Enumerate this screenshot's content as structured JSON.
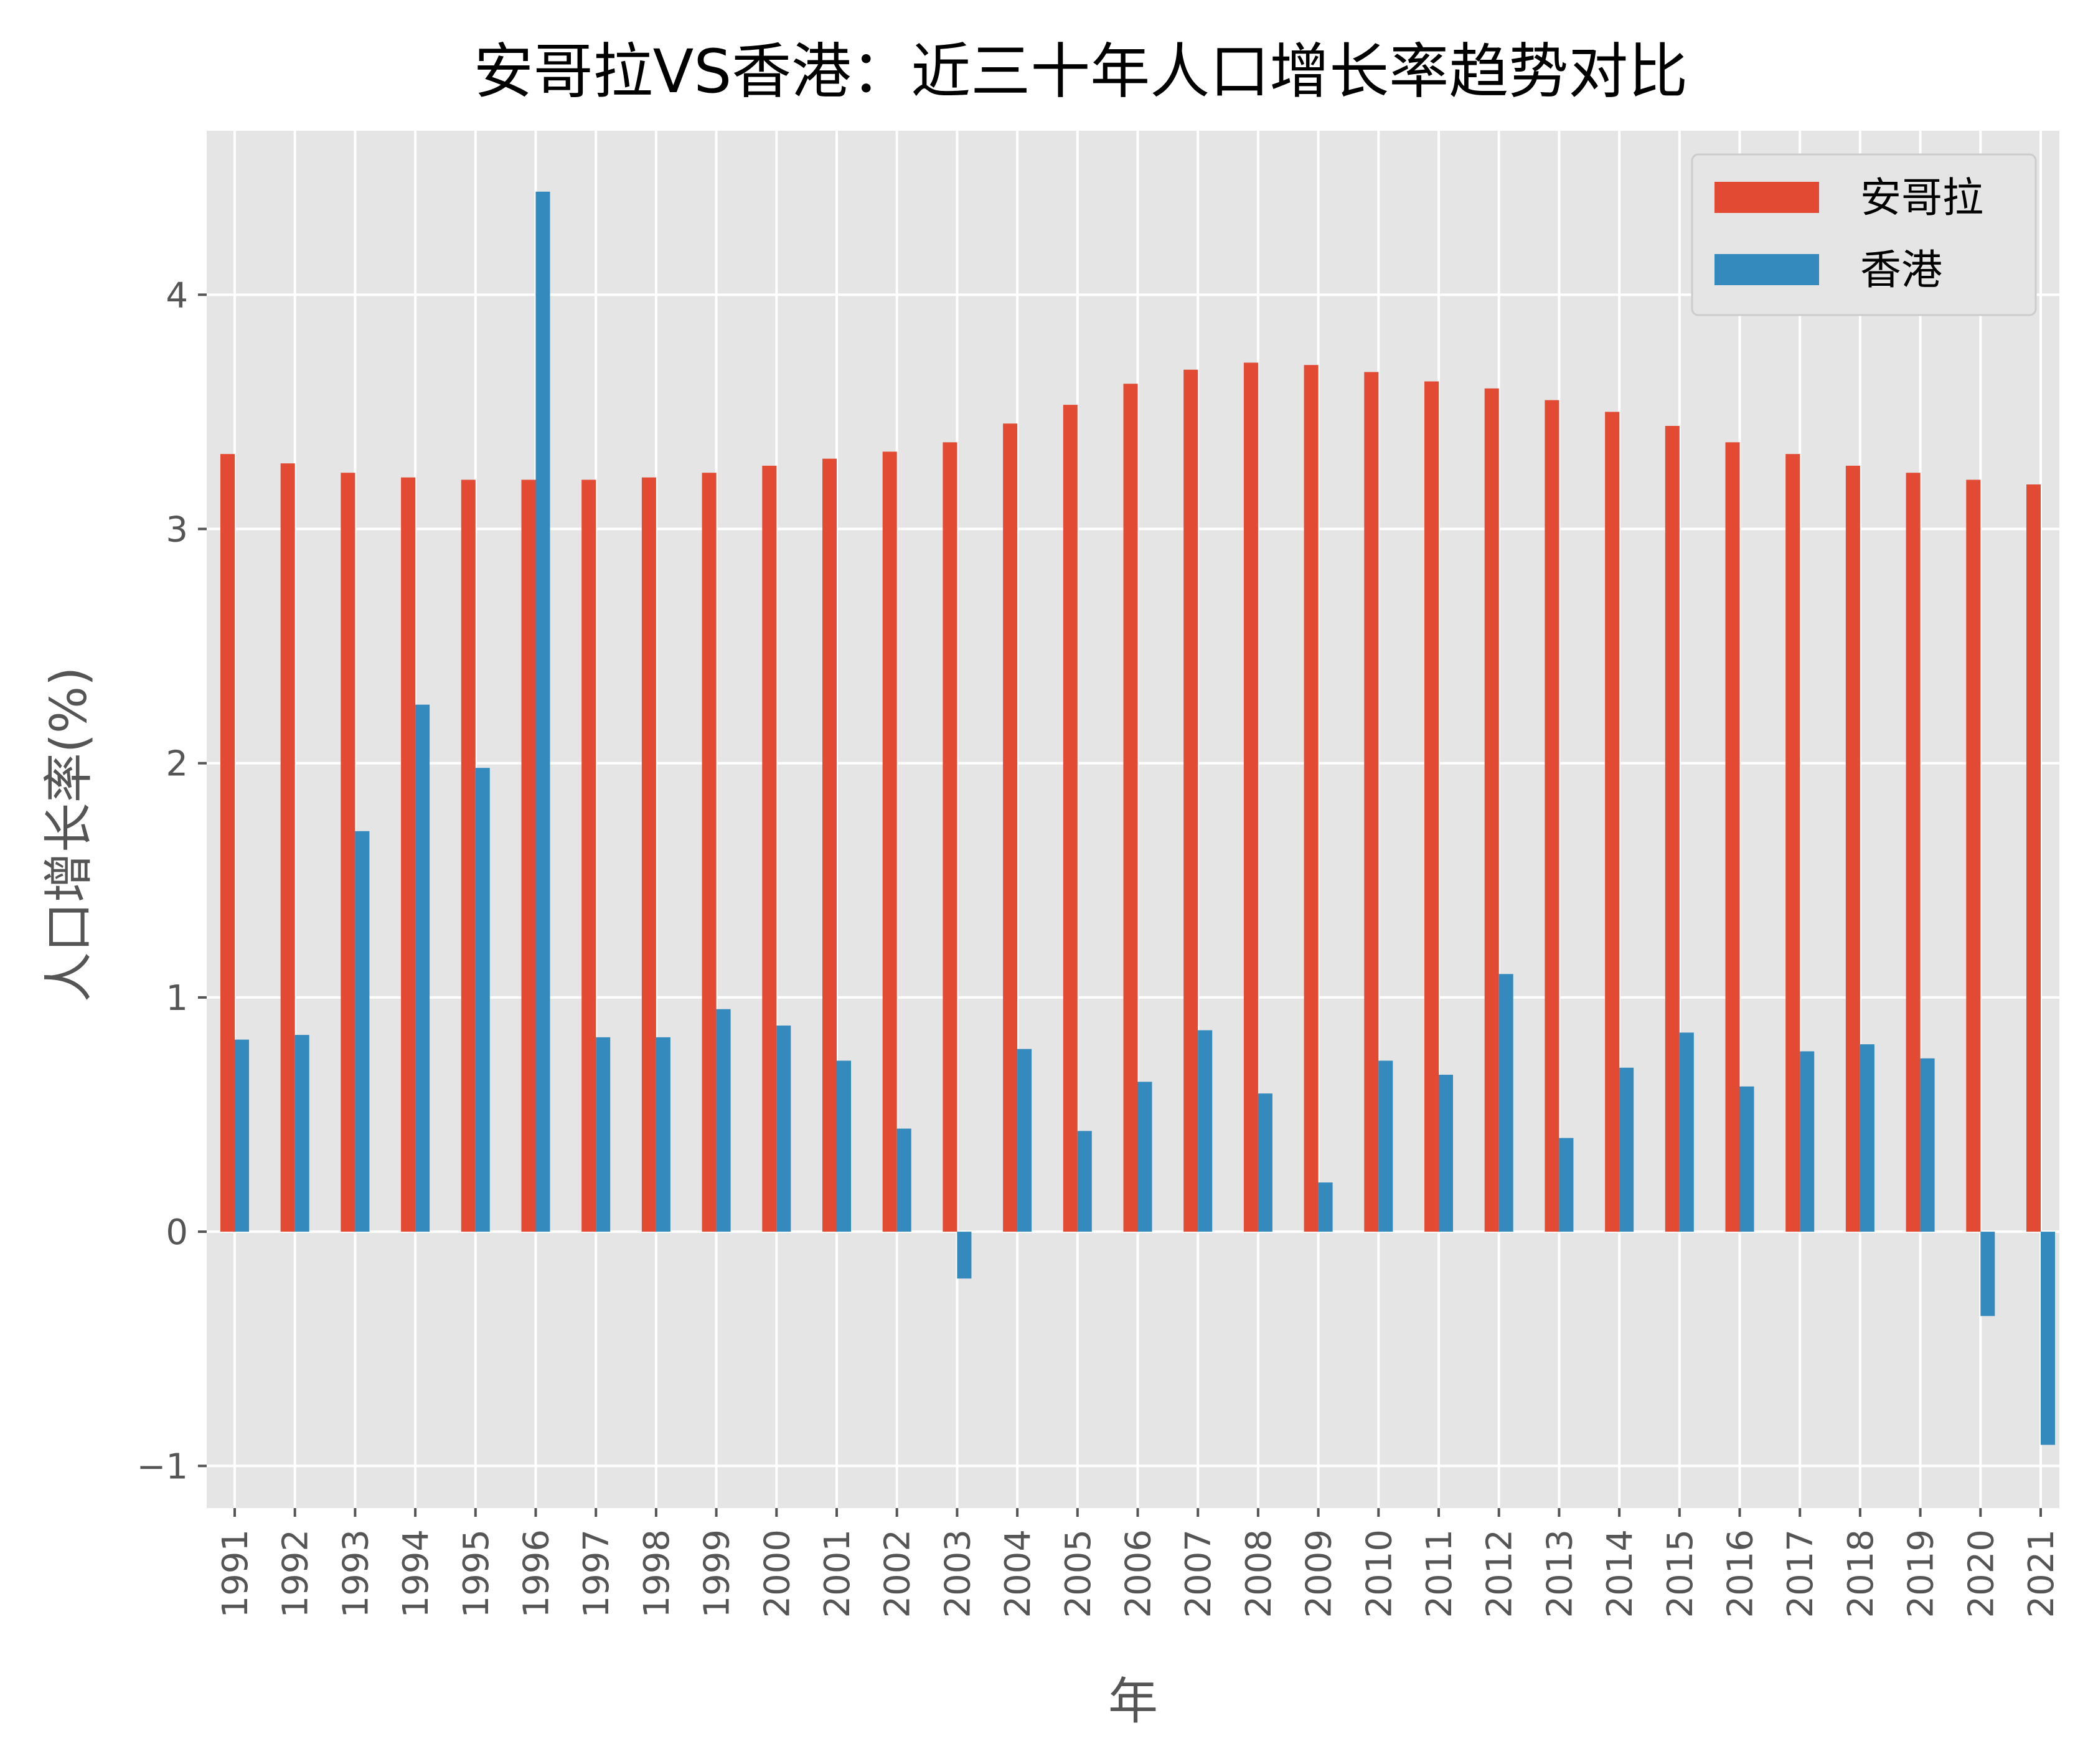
{
  "chart_data": {
    "type": "bar",
    "title": "安哥拉VS香港：近三十年人口增长率趋势对比",
    "xlabel": "年",
    "ylabel": "人口增长率(%)",
    "categories": [
      "1991",
      "1992",
      "1993",
      "1994",
      "1995",
      "1996",
      "1997",
      "1998",
      "1999",
      "2000",
      "2001",
      "2002",
      "2003",
      "2004",
      "2005",
      "2006",
      "2007",
      "2008",
      "2009",
      "2010",
      "2011",
      "2012",
      "2013",
      "2014",
      "2015",
      "2016",
      "2017",
      "2018",
      "2019",
      "2020",
      "2021"
    ],
    "series": [
      {
        "name": "安哥拉",
        "color": "#E24A33",
        "values": [
          3.32,
          3.28,
          3.24,
          3.22,
          3.21,
          3.21,
          3.21,
          3.22,
          3.24,
          3.27,
          3.3,
          3.33,
          3.37,
          3.45,
          3.53,
          3.62,
          3.68,
          3.71,
          3.7,
          3.67,
          3.63,
          3.6,
          3.55,
          3.5,
          3.44,
          3.37,
          3.32,
          3.27,
          3.24,
          3.21,
          3.19
        ]
      },
      {
        "name": "香港",
        "color": "#348ABD",
        "values": [
          0.82,
          0.84,
          1.71,
          2.25,
          1.98,
          4.44,
          0.83,
          0.83,
          0.95,
          0.88,
          0.73,
          0.44,
          -0.2,
          0.78,
          0.43,
          0.64,
          0.86,
          0.59,
          0.21,
          0.73,
          0.67,
          1.1,
          0.4,
          0.7,
          0.85,
          0.62,
          0.77,
          0.8,
          0.74,
          -0.36,
          -0.91
        ]
      }
    ],
    "yticks": [
      -1,
      0,
      1,
      2,
      3,
      4
    ],
    "ylim": [
      -1.18,
      4.7
    ],
    "grid": true,
    "legend": "top-right",
    "style": "ggplot"
  }
}
